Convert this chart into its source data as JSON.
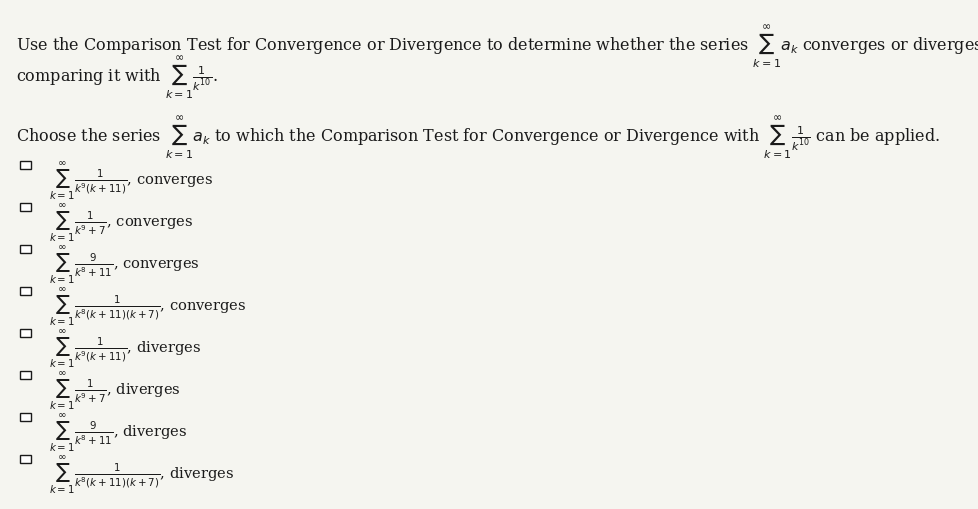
{
  "bg_color": "#f5f5f0",
  "text_color": "#1a1a1a",
  "title_line1": "Use the Comparison Test for Convergence or Divergence to determine whether the series $\\sum_{k=1}^{\\infty} a_k$ converges or diverges by",
  "title_line2": "comparing it with $\\sum_{k=1}^{\\infty} \\frac{1}{k^{10}}$.",
  "choose_line": "Choose the series $\\sum_{k=1}^{\\infty} a_k$ to which the Comparison Test for Convergence or Divergence with $\\sum_{k=1}^{\\infty} \\frac{1}{k^{10}}$ can be applied.",
  "options": [
    "$\\sum_{k=1}^{\\infty} \\frac{1}{k^{9}(k+11)}$, converges",
    "$\\sum_{k=1}^{\\infty} \\frac{1}{k^{9}+7}$, converges",
    "$\\sum_{k=1}^{\\infty} \\frac{9}{k^{8}+11}$, converges",
    "$\\sum_{k=1}^{\\infty} \\frac{1}{k^{8}(k+11)(k+7)}$, converges",
    "$\\sum_{k=1}^{\\infty} \\frac{1}{k^{9}(k+11)}$, diverges",
    "$\\sum_{k=1}^{\\infty} \\frac{1}{k^{9}+7}$, diverges",
    "$\\sum_{k=1}^{\\infty} \\frac{9}{k^{8}+11}$, diverges",
    "$\\sum_{k=1}^{\\infty} \\frac{1}{k^{8}(k+11)(k+7)}$, diverges"
  ],
  "title_fontsize": 11.5,
  "choose_fontsize": 11.5,
  "option_fontsize": 10.5,
  "checkbox_size": 0.012,
  "figsize": [
    9.79,
    5.09
  ],
  "dpi": 100
}
